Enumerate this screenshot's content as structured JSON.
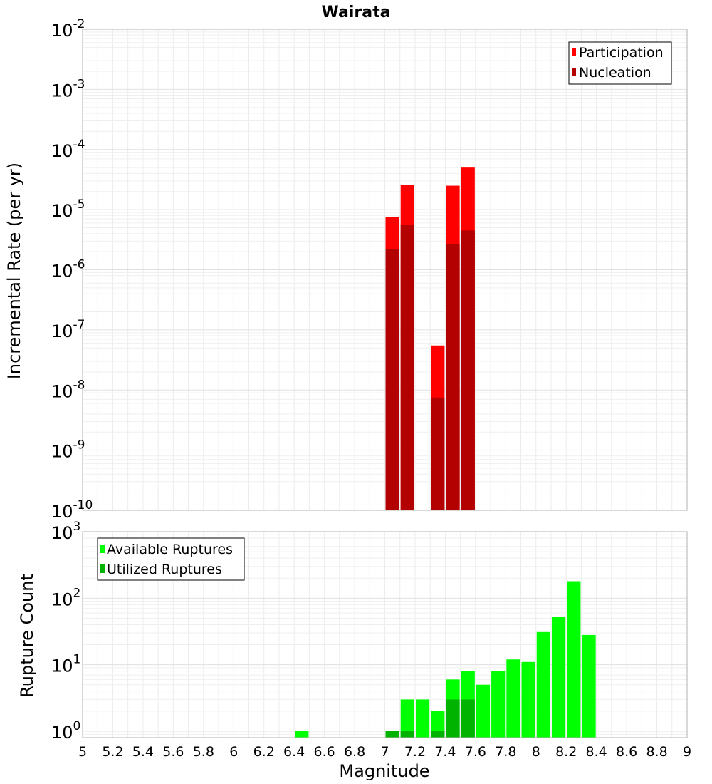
{
  "chart_data": [
    {
      "type": "bar",
      "title": "Wairata",
      "ylabel": "Incremental Rate (per yr)",
      "yscale": "log",
      "ylim": [
        1e-10,
        0.01
      ],
      "xlim": [
        5,
        9
      ],
      "y_tick_exponents": [
        "-10",
        "-9",
        "-8",
        "-7",
        "-6",
        "-5",
        "-4",
        "-3",
        "-2"
      ],
      "y_tick_base": "10",
      "legend": {
        "position": "top-right",
        "entries": [
          {
            "label": "Participation",
            "color": "#ff0000"
          },
          {
            "label": "Nucleation",
            "color": "#b30000"
          }
        ]
      },
      "bin_width": 0.1,
      "series": [
        {
          "name": "Participation",
          "color": "#ff0000",
          "x": [
            7.05,
            7.15,
            7.35,
            7.45,
            7.55
          ],
          "values": [
            7.5e-06,
            2.6e-05,
            5.5e-08,
            2.5e-05,
            5e-05
          ]
        },
        {
          "name": "Nucleation",
          "color": "#b30000",
          "x": [
            7.05,
            7.15,
            7.35,
            7.45,
            7.55
          ],
          "values": [
            2.2e-06,
            5.5e-06,
            7.5e-09,
            2.7e-06,
            4.5e-06
          ]
        }
      ]
    },
    {
      "type": "bar",
      "xlabel": "Magnitude",
      "ylabel": "Rupture Count",
      "yscale": "log",
      "ylim": [
        0.8,
        1000
      ],
      "xlim": [
        5,
        9
      ],
      "y_tick_values": [
        1,
        10,
        100,
        1000
      ],
      "y_tick_exponents": [
        "0",
        "1",
        "2",
        "3"
      ],
      "y_tick_base": "10",
      "x_tick_labels": [
        "5",
        "5.2",
        "5.4",
        "5.6",
        "5.8",
        "6",
        "6.2",
        "6.4",
        "6.6",
        "6.8",
        "7",
        "7.2",
        "7.4",
        "7.6",
        "7.8",
        "8",
        "8.2",
        "8.4",
        "8.6",
        "8.8",
        "9"
      ],
      "legend": {
        "position": "top-left",
        "entries": [
          {
            "label": "Available Ruptures",
            "color": "#00ff00"
          },
          {
            "label": "Utilized Ruptures",
            "color": "#00b300"
          }
        ]
      },
      "bin_width": 0.1,
      "series": [
        {
          "name": "Available Ruptures",
          "color": "#00ff00",
          "x": [
            6.45,
            7.05,
            7.15,
            7.25,
            7.35,
            7.45,
            7.55,
            7.65,
            7.75,
            7.85,
            7.95,
            8.05,
            8.15,
            8.25,
            8.35
          ],
          "values": [
            1,
            1,
            3,
            3,
            2,
            6,
            8,
            5,
            8,
            12,
            11,
            31,
            53,
            180,
            28
          ]
        },
        {
          "name": "Utilized Ruptures",
          "color": "#00b300",
          "x": [
            7.05,
            7.15,
            7.35,
            7.45,
            7.55
          ],
          "values": [
            1,
            1,
            1,
            3,
            3
          ]
        }
      ]
    }
  ]
}
